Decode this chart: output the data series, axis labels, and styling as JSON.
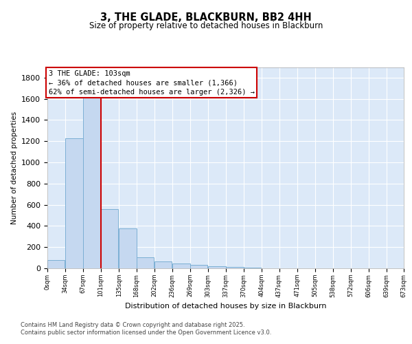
{
  "title": "3, THE GLADE, BLACKBURN, BB2 4HH",
  "subtitle": "Size of property relative to detached houses in Blackburn",
  "xlabel": "Distribution of detached houses by size in Blackburn",
  "ylabel": "Number of detached properties",
  "bar_color": "#c5d8f0",
  "bar_edge_color": "#7bafd4",
  "background_color": "#dce9f8",
  "grid_color": "#ffffff",
  "annotation_box_edgecolor": "#cc0000",
  "red_line_x": 101,
  "annotation_text": "3 THE GLADE: 103sqm\n← 36% of detached houses are smaller (1,366)\n62% of semi-detached houses are larger (2,326) →",
  "bin_starts": [
    0,
    34,
    67,
    101,
    135,
    168,
    202,
    236,
    269,
    303,
    337,
    370,
    404,
    437,
    471,
    505,
    538,
    572,
    606,
    639
  ],
  "bin_width": 33,
  "values": [
    75,
    1230,
    1730,
    560,
    380,
    105,
    65,
    45,
    30,
    20,
    10,
    5,
    2,
    0,
    0,
    0,
    0,
    0,
    0,
    0
  ],
  "xtick_labels": [
    "0sqm",
    "34sqm",
    "67sqm",
    "101sqm",
    "135sqm",
    "168sqm",
    "202sqm",
    "236sqm",
    "269sqm",
    "303sqm",
    "337sqm",
    "370sqm",
    "404sqm",
    "437sqm",
    "471sqm",
    "505sqm",
    "538sqm",
    "572sqm",
    "606sqm",
    "639sqm",
    "673sqm"
  ],
  "ylim": [
    0,
    1900
  ],
  "yticks": [
    0,
    200,
    400,
    600,
    800,
    1000,
    1200,
    1400,
    1600,
    1800
  ],
  "footer": "Contains HM Land Registry data © Crown copyright and database right 2025.\nContains public sector information licensed under the Open Government Licence v3.0."
}
